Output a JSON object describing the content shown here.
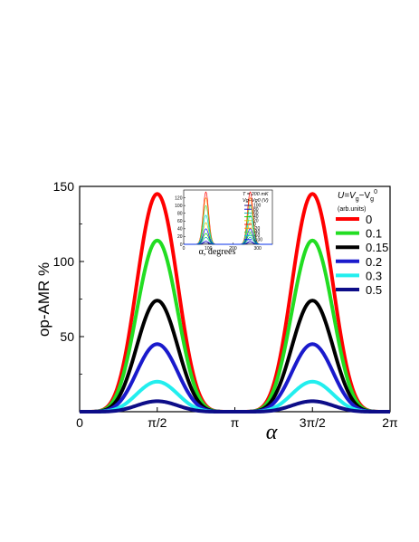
{
  "chart_data": [
    {
      "type": "line",
      "ylabel": "op-AMR %",
      "xlabel": "α",
      "xlim": [
        0,
        6.2832
      ],
      "ylim": [
        0,
        150
      ],
      "x_ticks": [
        {
          "value": 0,
          "label": "0"
        },
        {
          "value": 1.5708,
          "label": "π/2"
        },
        {
          "value": 3.1416,
          "label": "π"
        },
        {
          "value": 4.7124,
          "label": "3π/2"
        },
        {
          "value": 6.2832,
          "label": "2π"
        }
      ],
      "y_ticks": [
        {
          "value": 0,
          "label": "0"
        },
        {
          "value": 50,
          "label": "50"
        },
        {
          "value": 100,
          "label": "100"
        },
        {
          "value": 150,
          "label": "150"
        }
      ],
      "curve_shape": "A·sin²(α)^3",
      "legend_title": "U=Vg−Vg0",
      "legend_subtitle": "(arb.units)",
      "legend_position": "top-right",
      "series": [
        {
          "name": "0",
          "color": "#ff0000",
          "peak": 145
        },
        {
          "name": "0.1",
          "color": "#22dd22",
          "peak": 114
        },
        {
          "name": "0.15",
          "color": "#000000",
          "peak": 74
        },
        {
          "name": "0.2",
          "color": "#1a1acc",
          "peak": 45
        },
        {
          "name": "0.3",
          "color": "#22eeee",
          "peak": 20
        },
        {
          "name": "0.5",
          "color": "#0d0d88",
          "peak": 7
        }
      ]
    },
    {
      "type": "line",
      "inset": true,
      "xlabel": "α, degrees",
      "xlim": [
        0,
        360
      ],
      "ylim": [
        0,
        140
      ],
      "x_ticks": [
        0,
        100,
        200,
        300
      ],
      "y_ticks": [
        0,
        20,
        40,
        60,
        80,
        100,
        120
      ],
      "annotation": "T = 200 mK",
      "legend_title": "Vg−Vg0 (V)",
      "series": [
        {
          "name": "100",
          "color": "#000080",
          "peak": 4
        },
        {
          "name": "80",
          "color": "#0000cc",
          "peak": 8
        },
        {
          "name": "60",
          "color": "#00aaaa",
          "peak": 18
        },
        {
          "name": "40",
          "color": "#00cc00",
          "peak": 28
        },
        {
          "name": "20",
          "color": "#cccc00",
          "peak": 56
        },
        {
          "name": "0",
          "color": "#ff0000",
          "peak": 135
        },
        {
          "name": "-20",
          "color": "#ff8800",
          "peak": 120
        },
        {
          "name": "-40",
          "color": "#44cc44",
          "peak": 100
        },
        {
          "name": "-60",
          "color": "#00cccc",
          "peak": 75
        },
        {
          "name": "-100",
          "color": "#0000ff",
          "peak": 40
        }
      ]
    }
  ]
}
